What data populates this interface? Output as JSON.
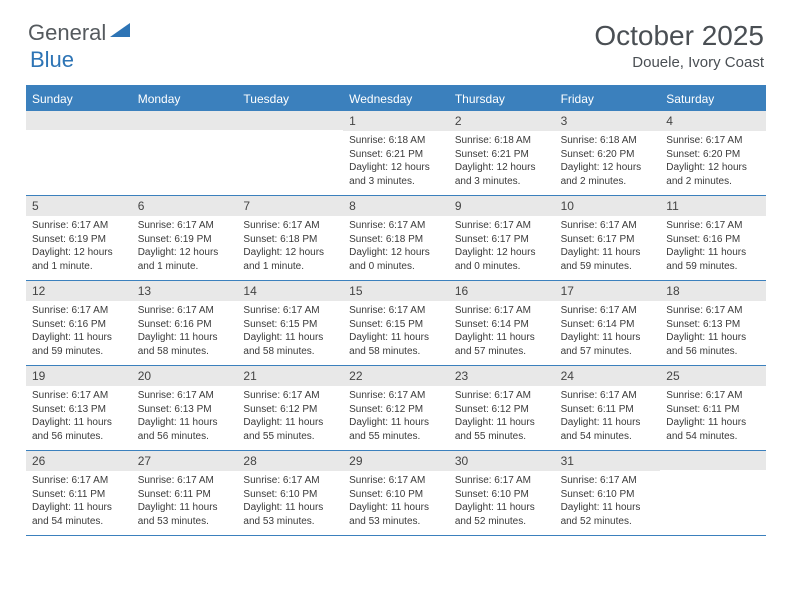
{
  "logo": {
    "text_gray": "General",
    "text_blue": "Blue"
  },
  "title": {
    "month": "October 2025",
    "location": "Douele, Ivory Coast"
  },
  "colors": {
    "header_bg": "#3b80bd",
    "daynum_bg": "#e8e8e8",
    "text": "#4a4f54"
  },
  "day_headers": [
    "Sunday",
    "Monday",
    "Tuesday",
    "Wednesday",
    "Thursday",
    "Friday",
    "Saturday"
  ],
  "weeks": [
    [
      {
        "num": "",
        "sunrise": "",
        "sunset": "",
        "daylight": ""
      },
      {
        "num": "",
        "sunrise": "",
        "sunset": "",
        "daylight": ""
      },
      {
        "num": "",
        "sunrise": "",
        "sunset": "",
        "daylight": ""
      },
      {
        "num": "1",
        "sunrise": "Sunrise: 6:18 AM",
        "sunset": "Sunset: 6:21 PM",
        "daylight": "Daylight: 12 hours and 3 minutes."
      },
      {
        "num": "2",
        "sunrise": "Sunrise: 6:18 AM",
        "sunset": "Sunset: 6:21 PM",
        "daylight": "Daylight: 12 hours and 3 minutes."
      },
      {
        "num": "3",
        "sunrise": "Sunrise: 6:18 AM",
        "sunset": "Sunset: 6:20 PM",
        "daylight": "Daylight: 12 hours and 2 minutes."
      },
      {
        "num": "4",
        "sunrise": "Sunrise: 6:17 AM",
        "sunset": "Sunset: 6:20 PM",
        "daylight": "Daylight: 12 hours and 2 minutes."
      }
    ],
    [
      {
        "num": "5",
        "sunrise": "Sunrise: 6:17 AM",
        "sunset": "Sunset: 6:19 PM",
        "daylight": "Daylight: 12 hours and 1 minute."
      },
      {
        "num": "6",
        "sunrise": "Sunrise: 6:17 AM",
        "sunset": "Sunset: 6:19 PM",
        "daylight": "Daylight: 12 hours and 1 minute."
      },
      {
        "num": "7",
        "sunrise": "Sunrise: 6:17 AM",
        "sunset": "Sunset: 6:18 PM",
        "daylight": "Daylight: 12 hours and 1 minute."
      },
      {
        "num": "8",
        "sunrise": "Sunrise: 6:17 AM",
        "sunset": "Sunset: 6:18 PM",
        "daylight": "Daylight: 12 hours and 0 minutes."
      },
      {
        "num": "9",
        "sunrise": "Sunrise: 6:17 AM",
        "sunset": "Sunset: 6:17 PM",
        "daylight": "Daylight: 12 hours and 0 minutes."
      },
      {
        "num": "10",
        "sunrise": "Sunrise: 6:17 AM",
        "sunset": "Sunset: 6:17 PM",
        "daylight": "Daylight: 11 hours and 59 minutes."
      },
      {
        "num": "11",
        "sunrise": "Sunrise: 6:17 AM",
        "sunset": "Sunset: 6:16 PM",
        "daylight": "Daylight: 11 hours and 59 minutes."
      }
    ],
    [
      {
        "num": "12",
        "sunrise": "Sunrise: 6:17 AM",
        "sunset": "Sunset: 6:16 PM",
        "daylight": "Daylight: 11 hours and 59 minutes."
      },
      {
        "num": "13",
        "sunrise": "Sunrise: 6:17 AM",
        "sunset": "Sunset: 6:16 PM",
        "daylight": "Daylight: 11 hours and 58 minutes."
      },
      {
        "num": "14",
        "sunrise": "Sunrise: 6:17 AM",
        "sunset": "Sunset: 6:15 PM",
        "daylight": "Daylight: 11 hours and 58 minutes."
      },
      {
        "num": "15",
        "sunrise": "Sunrise: 6:17 AM",
        "sunset": "Sunset: 6:15 PM",
        "daylight": "Daylight: 11 hours and 58 minutes."
      },
      {
        "num": "16",
        "sunrise": "Sunrise: 6:17 AM",
        "sunset": "Sunset: 6:14 PM",
        "daylight": "Daylight: 11 hours and 57 minutes."
      },
      {
        "num": "17",
        "sunrise": "Sunrise: 6:17 AM",
        "sunset": "Sunset: 6:14 PM",
        "daylight": "Daylight: 11 hours and 57 minutes."
      },
      {
        "num": "18",
        "sunrise": "Sunrise: 6:17 AM",
        "sunset": "Sunset: 6:13 PM",
        "daylight": "Daylight: 11 hours and 56 minutes."
      }
    ],
    [
      {
        "num": "19",
        "sunrise": "Sunrise: 6:17 AM",
        "sunset": "Sunset: 6:13 PM",
        "daylight": "Daylight: 11 hours and 56 minutes."
      },
      {
        "num": "20",
        "sunrise": "Sunrise: 6:17 AM",
        "sunset": "Sunset: 6:13 PM",
        "daylight": "Daylight: 11 hours and 56 minutes."
      },
      {
        "num": "21",
        "sunrise": "Sunrise: 6:17 AM",
        "sunset": "Sunset: 6:12 PM",
        "daylight": "Daylight: 11 hours and 55 minutes."
      },
      {
        "num": "22",
        "sunrise": "Sunrise: 6:17 AM",
        "sunset": "Sunset: 6:12 PM",
        "daylight": "Daylight: 11 hours and 55 minutes."
      },
      {
        "num": "23",
        "sunrise": "Sunrise: 6:17 AM",
        "sunset": "Sunset: 6:12 PM",
        "daylight": "Daylight: 11 hours and 55 minutes."
      },
      {
        "num": "24",
        "sunrise": "Sunrise: 6:17 AM",
        "sunset": "Sunset: 6:11 PM",
        "daylight": "Daylight: 11 hours and 54 minutes."
      },
      {
        "num": "25",
        "sunrise": "Sunrise: 6:17 AM",
        "sunset": "Sunset: 6:11 PM",
        "daylight": "Daylight: 11 hours and 54 minutes."
      }
    ],
    [
      {
        "num": "26",
        "sunrise": "Sunrise: 6:17 AM",
        "sunset": "Sunset: 6:11 PM",
        "daylight": "Daylight: 11 hours and 54 minutes."
      },
      {
        "num": "27",
        "sunrise": "Sunrise: 6:17 AM",
        "sunset": "Sunset: 6:11 PM",
        "daylight": "Daylight: 11 hours and 53 minutes."
      },
      {
        "num": "28",
        "sunrise": "Sunrise: 6:17 AM",
        "sunset": "Sunset: 6:10 PM",
        "daylight": "Daylight: 11 hours and 53 minutes."
      },
      {
        "num": "29",
        "sunrise": "Sunrise: 6:17 AM",
        "sunset": "Sunset: 6:10 PM",
        "daylight": "Daylight: 11 hours and 53 minutes."
      },
      {
        "num": "30",
        "sunrise": "Sunrise: 6:17 AM",
        "sunset": "Sunset: 6:10 PM",
        "daylight": "Daylight: 11 hours and 52 minutes."
      },
      {
        "num": "31",
        "sunrise": "Sunrise: 6:17 AM",
        "sunset": "Sunset: 6:10 PM",
        "daylight": "Daylight: 11 hours and 52 minutes."
      },
      {
        "num": "",
        "sunrise": "",
        "sunset": "",
        "daylight": ""
      }
    ]
  ]
}
